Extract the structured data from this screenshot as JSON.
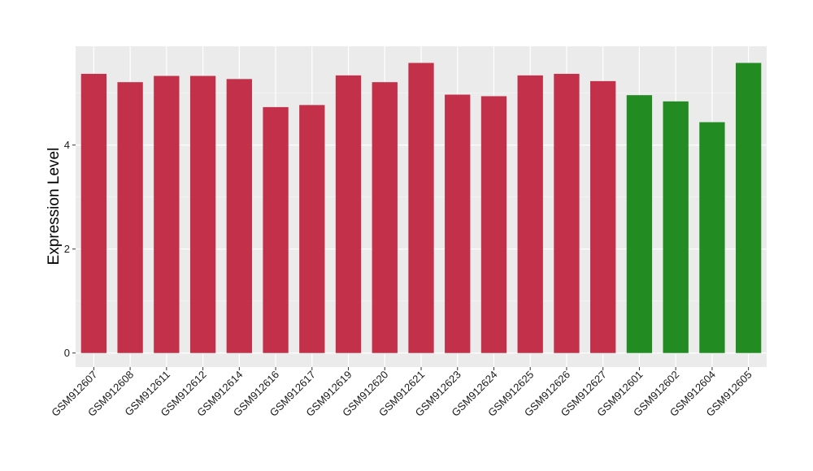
{
  "chart_data": {
    "type": "bar",
    "title": "",
    "xlabel": "",
    "ylabel": "Expression Level",
    "ylim": [
      -0.27,
      5.9
    ],
    "yticks": [
      0,
      2,
      4
    ],
    "grid": true,
    "legend": "none",
    "categories": [
      "GSM912607",
      "GSM912608",
      "GSM912611",
      "GSM912612",
      "GSM912614",
      "GSM912616",
      "GSM912617",
      "GSM912619",
      "GSM912620",
      "GSM912621",
      "GSM912623",
      "GSM912624",
      "GSM912625",
      "GSM912626",
      "GSM912627",
      "GSM912601",
      "GSM912602",
      "GSM912604",
      "GSM912605"
    ],
    "values": [
      5.37,
      5.21,
      5.33,
      5.33,
      5.27,
      4.73,
      4.77,
      5.34,
      5.21,
      5.58,
      4.97,
      4.94,
      5.34,
      5.37,
      5.23,
      4.96,
      4.84,
      4.44,
      5.58
    ],
    "groups": [
      "red",
      "red",
      "red",
      "red",
      "red",
      "red",
      "red",
      "red",
      "red",
      "red",
      "red",
      "red",
      "red",
      "red",
      "red",
      "green",
      "green",
      "green",
      "green"
    ],
    "colors": {
      "red": "#c3304a",
      "green": "#228b22",
      "panel": "#ebebeb",
      "grid_major": "#ffffff",
      "grid_minor": "#f4f4f4"
    }
  }
}
